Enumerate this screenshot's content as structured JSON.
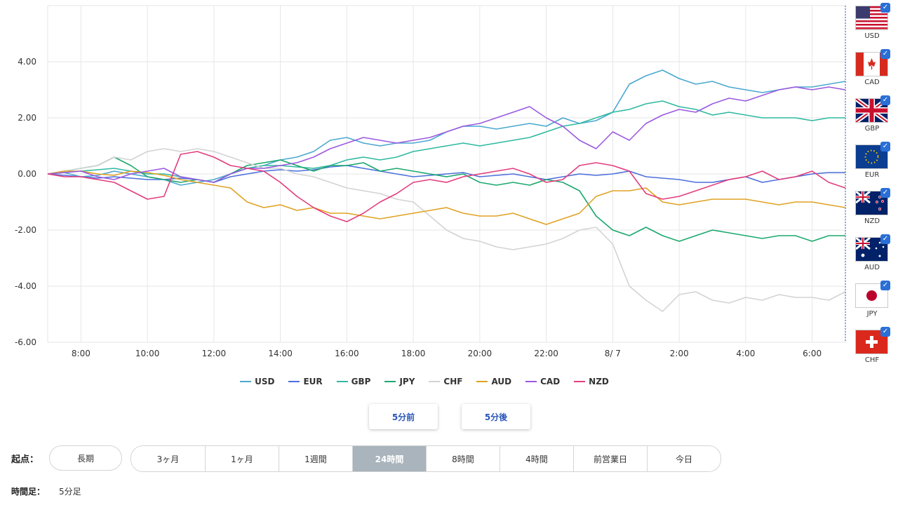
{
  "chart_data": {
    "type": "line",
    "x": [
      "7:00",
      "7:30",
      "8:00",
      "8:30",
      "9:00",
      "9:30",
      "10:00",
      "10:30",
      "11:00",
      "11:30",
      "12:00",
      "12:30",
      "13:00",
      "13:30",
      "14:00",
      "14:30",
      "15:00",
      "15:30",
      "16:00",
      "16:30",
      "17:00",
      "17:30",
      "18:00",
      "18:30",
      "19:00",
      "19:30",
      "20:00",
      "20:30",
      "21:00",
      "21:30",
      "22:00",
      "22:30",
      "23:00",
      "23:30",
      "8/7 0:00",
      "0:30",
      "1:00",
      "1:30",
      "2:00",
      "2:30",
      "3:00",
      "3:30",
      "4:00",
      "4:30",
      "5:00",
      "5:30",
      "6:00",
      "6:30",
      "7:00"
    ],
    "x_tick_labels": [
      "8:00",
      "10:00",
      "12:00",
      "14:00",
      "16:00",
      "18:00",
      "20:00",
      "22:00",
      "8/ 7",
      "2:00",
      "4:00",
      "6:00"
    ],
    "y_tick_labels": [
      "4.00",
      "2.00",
      "0.00",
      "-2.00",
      "-4.00",
      "-6.00"
    ],
    "ylim": [
      -6,
      6
    ],
    "grid": true,
    "legend_position": "bottom",
    "series": [
      {
        "name": "USD",
        "color": "#4aa8d0",
        "values": [
          0,
          0.05,
          -0.1,
          -0.05,
          0.1,
          0,
          -0.1,
          -0.2,
          -0.4,
          -0.3,
          -0.2,
          0,
          0.2,
          0.3,
          0.5,
          0.6,
          0.8,
          1.2,
          1.3,
          1.1,
          1,
          1.1,
          1.1,
          1.2,
          1.5,
          1.7,
          1.7,
          1.6,
          1.7,
          1.8,
          1.7,
          2,
          1.8,
          1.9,
          2.2,
          3.2,
          3.5,
          3.7,
          3.4,
          3.2,
          3.3,
          3.1,
          3.0,
          2.9,
          3.0,
          3.1,
          3.1,
          3.2,
          3.3
        ]
      },
      {
        "name": "EUR",
        "color": "#4c6fdc",
        "values": [
          0,
          -0.05,
          -0.1,
          -0.15,
          -0.1,
          -0.15,
          -0.2,
          -0.2,
          -0.15,
          -0.2,
          -0.3,
          -0.1,
          0,
          0.1,
          0.15,
          0.1,
          0.15,
          0.25,
          0.3,
          0.2,
          0.1,
          0,
          -0.1,
          -0.05,
          0,
          0.05,
          -0.1,
          -0.05,
          0,
          -0.1,
          -0.2,
          -0.1,
          0,
          -0.05,
          0,
          0.1,
          -0.1,
          -0.15,
          -0.2,
          -0.3,
          -0.3,
          -0.2,
          -0.1,
          -0.3,
          -0.2,
          -0.1,
          0,
          0.05,
          0.05
        ]
      },
      {
        "name": "GBP",
        "color": "#2fb9a0",
        "values": [
          0,
          0.05,
          0.1,
          0.15,
          0.2,
          0.1,
          0,
          0,
          -0.1,
          -0.2,
          -0.3,
          0,
          0.2,
          0.3,
          0.3,
          0.25,
          0.2,
          0.3,
          0.5,
          0.6,
          0.5,
          0.6,
          0.8,
          0.9,
          1,
          1.1,
          1.0,
          1.1,
          1.2,
          1.3,
          1.5,
          1.7,
          1.8,
          2,
          2.2,
          2.3,
          2.5,
          2.6,
          2.4,
          2.3,
          2.1,
          2.2,
          2.1,
          2,
          2.0,
          2.0,
          1.9,
          2.0,
          2.0
        ]
      },
      {
        "name": "JPY",
        "color": "#1ca86e",
        "values": [
          0,
          0.1,
          0.2,
          0.3,
          0.6,
          0.3,
          -0.1,
          -0.2,
          -0.3,
          -0.2,
          -0.3,
          0,
          0.3,
          0.4,
          0.5,
          0.3,
          0.1,
          0.3,
          0.3,
          0.4,
          0.1,
          0.2,
          0.1,
          0,
          -0.1,
          0,
          -0.3,
          -0.4,
          -0.3,
          -0.4,
          -0.2,
          -0.3,
          -0.6,
          -1.5,
          -2.0,
          -2.2,
          -1.9,
          -2.2,
          -2.4,
          -2.2,
          -2.0,
          -2.1,
          -2.2,
          -2.3,
          -2.2,
          -2.2,
          -2.4,
          -2.2,
          -2.2
        ]
      },
      {
        "name": "CHF",
        "color": "#d3d3d3",
        "values": [
          0,
          0.1,
          0.2,
          0.3,
          0.6,
          0.5,
          0.8,
          0.9,
          0.8,
          0.9,
          0.8,
          0.6,
          0.4,
          0.2,
          0.2,
          0,
          -0.1,
          -0.3,
          -0.5,
          -0.6,
          -0.7,
          -0.9,
          -1.0,
          -1.5,
          -2.0,
          -2.3,
          -2.4,
          -2.6,
          -2.7,
          -2.6,
          -2.5,
          -2.3,
          -2.0,
          -1.9,
          -2.5,
          -4.0,
          -4.5,
          -4.9,
          -4.3,
          -4.2,
          -4.5,
          -4.6,
          -4.4,
          -4.5,
          -4.3,
          -4.4,
          -4.4,
          -4.5,
          -4.2
        ]
      },
      {
        "name": "AUD",
        "color": "#e0a224",
        "values": [
          0,
          0.1,
          0.1,
          0,
          -0.05,
          0.1,
          0.05,
          -0.05,
          -0.2,
          -0.3,
          -0.4,
          -0.5,
          -1.0,
          -1.2,
          -1.1,
          -1.3,
          -1.2,
          -1.4,
          -1.4,
          -1.5,
          -1.6,
          -1.5,
          -1.4,
          -1.3,
          -1.2,
          -1.4,
          -1.5,
          -1.5,
          -1.4,
          -1.6,
          -1.8,
          -1.6,
          -1.4,
          -0.8,
          -0.6,
          -0.6,
          -0.5,
          -1.0,
          -1.1,
          -1.0,
          -0.9,
          -0.9,
          -0.9,
          -1.0,
          -1.1,
          -1.0,
          -1.0,
          -1.1,
          -1.2
        ]
      },
      {
        "name": "CAD",
        "color": "#9b59e0",
        "values": [
          0,
          0.05,
          0.1,
          -0.1,
          -0.2,
          0,
          0.1,
          0.2,
          -0.1,
          -0.2,
          -0.3,
          0,
          0.2,
          0.2,
          0.3,
          0.4,
          0.6,
          0.9,
          1.1,
          1.3,
          1.2,
          1.1,
          1.2,
          1.3,
          1.5,
          1.7,
          1.8,
          2.0,
          2.2,
          2.4,
          2.0,
          1.7,
          1.2,
          0.9,
          1.5,
          1.2,
          1.8,
          2.1,
          2.3,
          2.2,
          2.5,
          2.7,
          2.6,
          2.8,
          3.0,
          3.1,
          3.0,
          3.1,
          3.0
        ]
      },
      {
        "name": "NZD",
        "color": "#e23d7d",
        "values": [
          0,
          -0.1,
          -0.1,
          -0.2,
          -0.3,
          -0.6,
          -0.9,
          -0.8,
          0.7,
          0.8,
          0.6,
          0.3,
          0.2,
          0.1,
          -0.3,
          -0.8,
          -1.2,
          -1.5,
          -1.7,
          -1.4,
          -1.0,
          -0.7,
          -0.3,
          -0.2,
          -0.3,
          -0.1,
          0,
          0.1,
          0.2,
          0,
          -0.3,
          -0.2,
          0.3,
          0.4,
          0.3,
          0.1,
          -0.7,
          -0.9,
          -0.8,
          -0.6,
          -0.4,
          -0.2,
          -0.1,
          0.1,
          -0.2,
          -0.1,
          0.1,
          -0.3,
          -0.5
        ]
      }
    ]
  },
  "flags": [
    {
      "code": "USD",
      "icon": "us-flag-icon"
    },
    {
      "code": "CAD",
      "icon": "ca-flag-icon"
    },
    {
      "code": "GBP",
      "icon": "gb-flag-icon"
    },
    {
      "code": "EUR",
      "icon": "eu-flag-icon"
    },
    {
      "code": "NZD",
      "icon": "nz-flag-icon"
    },
    {
      "code": "AUD",
      "icon": "au-flag-icon"
    },
    {
      "code": "JPY",
      "icon": "jp-flag-icon"
    },
    {
      "code": "CHF",
      "icon": "ch-flag-icon"
    }
  ],
  "nav": {
    "prev": "5分前",
    "next": "5分後"
  },
  "origin": {
    "label": "起点：",
    "long": "長期",
    "ranges": [
      "3ヶ月",
      "1ヶ月",
      "1週間",
      "24時間",
      "8時間",
      "4時間",
      "前営業日",
      "今日"
    ],
    "active_index": 3
  },
  "timeframe": {
    "label": "時間足：",
    "value": "5分足"
  }
}
